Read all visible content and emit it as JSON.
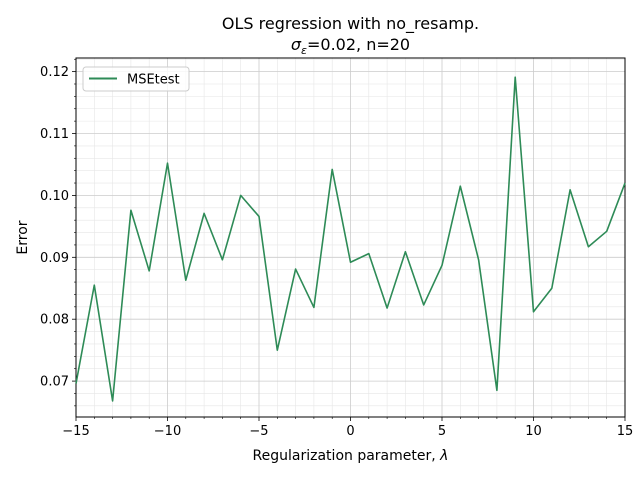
{
  "chart_data": {
    "type": "line",
    "title_line1": "OLS regression with no_resamp.",
    "title_line2_symbol": "σ",
    "title_line2_subscript": "ε",
    "title_line2_rest": "=0.02,  n=20",
    "xlabel": "Regularization parameter, ",
    "xlabel_symbol": "λ",
    "ylabel": "Error",
    "xlim": [
      -15,
      15
    ],
    "ylim": [
      0.0642,
      0.1222
    ],
    "xticks": [
      -15,
      -10,
      -5,
      0,
      5,
      10,
      15
    ],
    "xtick_labels": [
      "−15",
      "−10",
      "−5",
      "0",
      "5",
      "10",
      "15"
    ],
    "yticks": [
      0.07,
      0.08,
      0.09,
      0.1,
      0.11,
      0.12
    ],
    "ytick_labels": [
      "0.07",
      "0.08",
      "0.09",
      "0.10",
      "0.11",
      "0.12"
    ],
    "grid": true,
    "legend_position": "top-left",
    "series": [
      {
        "name": "MSEtest",
        "color": "#2e8b57",
        "x": [
          -15,
          -14,
          -13,
          -12,
          -11,
          -10,
          -9,
          -8,
          -7,
          -6,
          -5,
          -4,
          -3,
          -2,
          -1,
          0,
          1,
          2,
          3,
          4,
          5,
          6,
          7,
          8,
          9,
          10,
          11,
          12,
          13,
          14,
          15
        ],
        "y": [
          0.0696,
          0.0855,
          0.0668,
          0.0976,
          0.0878,
          0.1052,
          0.0863,
          0.0971,
          0.0896,
          0.1,
          0.0966,
          0.075,
          0.0881,
          0.0819,
          0.1042,
          0.0892,
          0.0906,
          0.0818,
          0.0909,
          0.0823,
          0.0887,
          0.1015,
          0.0896,
          0.0685,
          0.1191,
          0.0812,
          0.085,
          0.1009,
          0.0917,
          0.0942,
          0.102
        ]
      }
    ]
  }
}
